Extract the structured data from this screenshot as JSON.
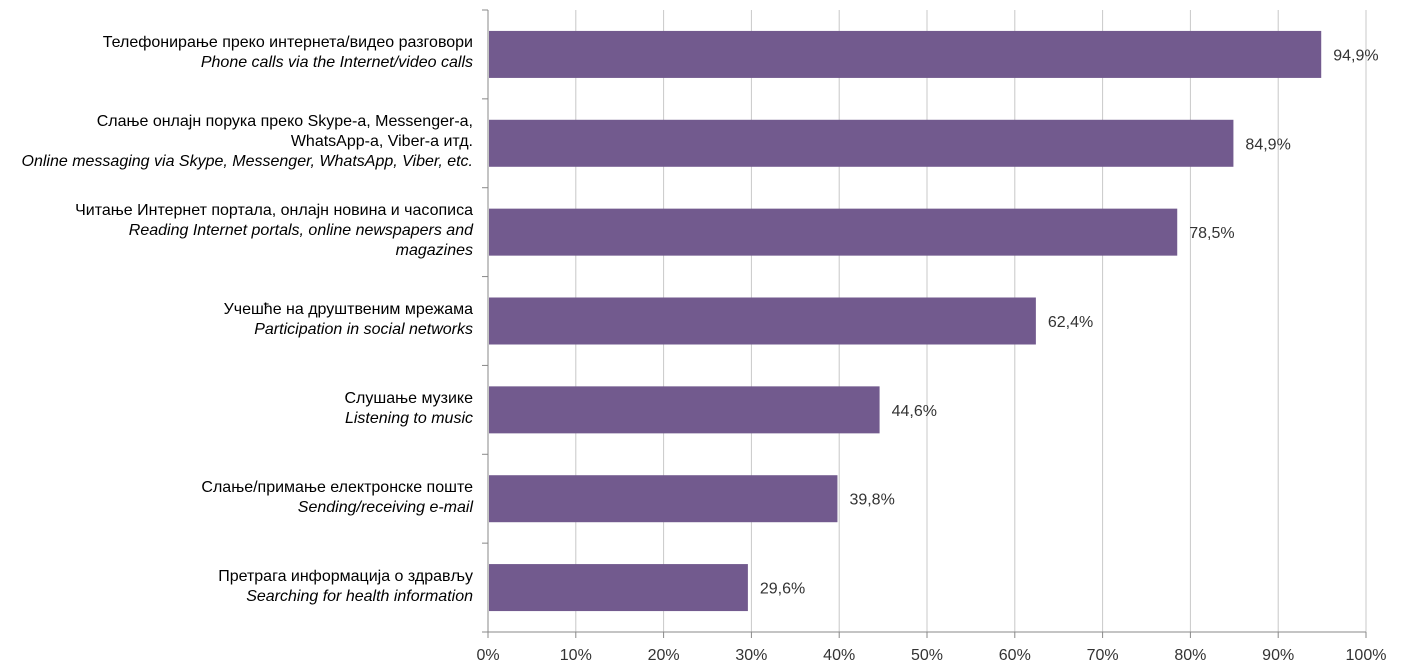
{
  "chart_data": {
    "type": "bar",
    "orientation": "horizontal",
    "categories": [
      {
        "sr_lines": [
          "Телефонирање преко интернета/видео разговори"
        ],
        "en_lines": [
          "Phone calls via the Internet/video calls"
        ]
      },
      {
        "sr_lines": [
          "Слање онлајн порука преко Skype-а, Messenger-а,",
          "WhatsApp-а, Viber-а итд."
        ],
        "en_lines": [
          "Online messaging via Skype, Messenger, WhatsApp, Viber, etc."
        ]
      },
      {
        "sr_lines": [
          "Читање Интернет портала, онлајн новина и часописа"
        ],
        "en_lines": [
          "Reading Internet portals, online newspapers and",
          "magazines"
        ]
      },
      {
        "sr_lines": [
          "Учешће на друштвеним мрежама"
        ],
        "en_lines": [
          "Participation in social networks"
        ]
      },
      {
        "sr_lines": [
          "Слушање музике"
        ],
        "en_lines": [
          "Listening to music"
        ]
      },
      {
        "sr_lines": [
          "Слање/примање електронске поште"
        ],
        "en_lines": [
          "Sending/receiving e-mail"
        ]
      },
      {
        "sr_lines": [
          "Претрага информација о здрављу"
        ],
        "en_lines": [
          "Searching for health information"
        ]
      }
    ],
    "values": [
      94.9,
      84.9,
      78.5,
      62.4,
      44.6,
      39.8,
      29.6
    ],
    "value_labels": [
      "94,9%",
      "84,9%",
      "78,5%",
      "62,4%",
      "44,6%",
      "39,8%",
      "29,6%"
    ],
    "xlim": [
      0,
      100
    ],
    "x_ticks": [
      0,
      10,
      20,
      30,
      40,
      50,
      60,
      70,
      80,
      90,
      100
    ],
    "x_tick_labels": [
      "0%",
      "10%",
      "20%",
      "30%",
      "40%",
      "50%",
      "60%",
      "70%",
      "80%",
      "90%",
      "100%"
    ],
    "grid": "vertical",
    "bar_color": "#725a8e",
    "grid_color": "#c8c8c8",
    "legend": "none",
    "title": "",
    "xlabel": "",
    "ylabel": ""
  }
}
